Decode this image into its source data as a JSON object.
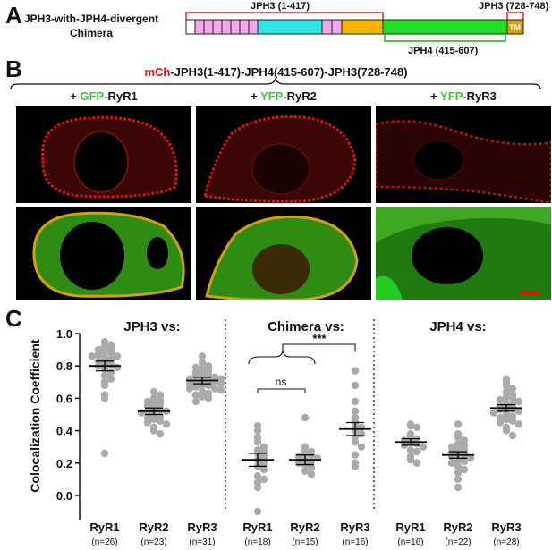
{
  "panelA": {
    "letter": "A",
    "title_line1": "JPH3-with-JPH4-divergent",
    "title_line2": "Chimera",
    "label_jph3_left": "JPH3 (1-417)",
    "label_jph3_right": "JPH3 (728-748)",
    "label_jph4": "JPH4 (415-607)",
    "tm_label": "TM",
    "colors": {
      "morn": "#f2a7ea",
      "joining": "#33e3e3",
      "divergent": "#f7b500",
      "jph4": "#22dd22",
      "tm": "#d4a017",
      "bracket_red": "#e02020",
      "bracket_green": "#22aa22"
    }
  },
  "panelB": {
    "letter": "B",
    "construct_prefix": "mCh",
    "construct_rest": "-JPH3(1-417)-JPH4(415-607)-JPH3(728-748)",
    "conditions": [
      {
        "plus": "+ ",
        "tag": "GFP",
        "rest": "-RyR1"
      },
      {
        "plus": "+ ",
        "tag": "YFP",
        "rest": "-RyR2"
      },
      {
        "plus": "+ ",
        "tag": "YFP",
        "rest": "-RyR3"
      }
    ],
    "colors": {
      "red_text": "#e01010",
      "green_text": "#33cc33"
    }
  },
  "panelC": {
    "letter": "C",
    "ns_label": "ns",
    "sig_label": "***"
  },
  "chart_data": {
    "type": "scatter",
    "ylabel": "Colocalization Coefficient",
    "ylim": [
      -0.05,
      1.0
    ],
    "yticks": [
      "0.0",
      "0.2",
      "0.4",
      "0.6",
      "0.8",
      "1.0"
    ],
    "group_titles": [
      "JPH3  vs:",
      "Chimera  vs:",
      "JPH4  vs:"
    ],
    "categories": [
      "RyR1",
      "RyR2",
      "RyR3",
      "RyR1",
      "RyR2",
      "RyR3",
      "RyR1",
      "RyR2",
      "RyR3"
    ],
    "ns": [
      "(n=26)",
      "(n=23)",
      "(n=31)",
      "(n=18)",
      "(n=15)",
      "(n=16)",
      "(n=16)",
      "(n=22)",
      "(n=28)"
    ],
    "means": [
      0.8,
      0.52,
      0.71,
      0.22,
      0.22,
      0.41,
      0.33,
      0.25,
      0.54
    ],
    "sems": [
      0.03,
      0.02,
      0.02,
      0.04,
      0.03,
      0.04,
      0.02,
      0.02,
      0.02
    ],
    "points": [
      [
        0.95,
        0.93,
        0.92,
        0.91,
        0.9,
        0.89,
        0.88,
        0.87,
        0.86,
        0.86,
        0.85,
        0.84,
        0.83,
        0.82,
        0.81,
        0.8,
        0.79,
        0.78,
        0.76,
        0.74,
        0.72,
        0.7,
        0.68,
        0.62,
        0.6,
        0.26
      ],
      [
        0.64,
        0.62,
        0.6,
        0.59,
        0.58,
        0.57,
        0.56,
        0.55,
        0.54,
        0.53,
        0.52,
        0.52,
        0.51,
        0.5,
        0.49,
        0.48,
        0.47,
        0.46,
        0.45,
        0.44,
        0.42,
        0.4,
        0.38
      ],
      [
        0.86,
        0.82,
        0.8,
        0.79,
        0.78,
        0.77,
        0.76,
        0.75,
        0.74,
        0.74,
        0.73,
        0.72,
        0.72,
        0.71,
        0.71,
        0.7,
        0.7,
        0.69,
        0.69,
        0.68,
        0.68,
        0.67,
        0.66,
        0.66,
        0.65,
        0.64,
        0.63,
        0.62,
        0.61,
        0.6,
        0.58
      ],
      [
        0.43,
        0.4,
        0.36,
        0.33,
        0.3,
        0.28,
        0.27,
        0.26,
        0.24,
        0.22,
        0.2,
        0.18,
        0.16,
        0.12,
        0.1,
        0.08,
        0.05,
        -0.1
      ],
      [
        0.48,
        0.3,
        0.28,
        0.27,
        0.26,
        0.25,
        0.24,
        0.23,
        0.22,
        0.21,
        0.2,
        0.19,
        0.17,
        0.15,
        0.13
      ],
      [
        0.77,
        0.68,
        0.58,
        0.52,
        0.48,
        0.45,
        0.43,
        0.42,
        0.4,
        0.38,
        0.36,
        0.33,
        0.3,
        0.25,
        0.2,
        0.18
      ],
      [
        0.44,
        0.43,
        0.42,
        0.38,
        0.36,
        0.35,
        0.34,
        0.33,
        0.32,
        0.31,
        0.3,
        0.28,
        0.27,
        0.24,
        0.22,
        0.2
      ],
      [
        0.44,
        0.38,
        0.36,
        0.34,
        0.32,
        0.31,
        0.3,
        0.29,
        0.28,
        0.27,
        0.26,
        0.25,
        0.24,
        0.23,
        0.22,
        0.21,
        0.2,
        0.18,
        0.16,
        0.14,
        0.1,
        0.05
      ],
      [
        0.72,
        0.7,
        0.68,
        0.66,
        0.64,
        0.62,
        0.61,
        0.6,
        0.59,
        0.58,
        0.57,
        0.56,
        0.55,
        0.54,
        0.54,
        0.53,
        0.52,
        0.51,
        0.5,
        0.49,
        0.48,
        0.47,
        0.46,
        0.45,
        0.44,
        0.42,
        0.4,
        0.37
      ]
    ],
    "point_color": "#aaaaaa",
    "grid": false
  }
}
